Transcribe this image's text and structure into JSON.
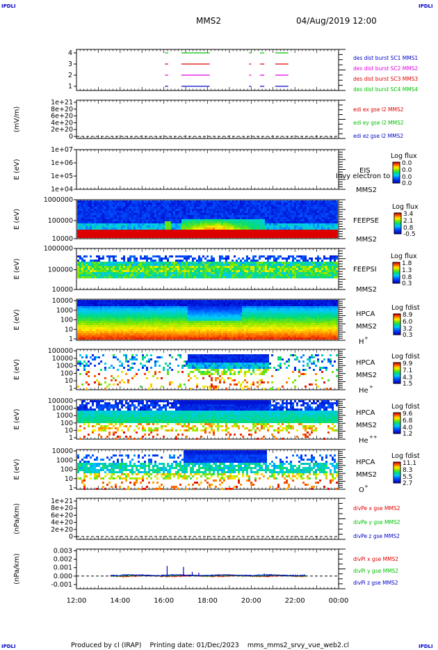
{
  "corners": {
    "tl": "IPDLI",
    "tr": "IPDLI",
    "bl": "IPDLI",
    "br": "IPDLI"
  },
  "header": {
    "spacecraft": "MMS2",
    "datetime": "04/Aug/2019 12:00"
  },
  "footer": {
    "text": "Produced by cl (IRAP)    Printing date: 01/Dec/2023    mms_mms2_srvy_vue_web2.cl"
  },
  "colors": {
    "red": "#e00000",
    "green": "#00c000",
    "blue": "#0000c8",
    "magenta": "#e000e0"
  },
  "chart_data": [
    {
      "type": "line",
      "panel": "burst",
      "ylim": [
        0.5,
        4.5
      ],
      "ticks": [
        "1",
        "2",
        "3",
        "4"
      ],
      "legend": [
        {
          "text": "des dist burst SC1 MMS1",
          "color": "#0000c8"
        },
        {
          "text": "des dist burst SC2 MMS2",
          "color": "#e000e0"
        },
        {
          "text": "des dist burst SC3 MMS3",
          "color": "#e00000"
        },
        {
          "text": "des dist burst SC4 MMS4",
          "color": "#00c000"
        }
      ],
      "intervals": [
        [
          16.05,
          16.2
        ],
        [
          16.8,
          18.1
        ],
        [
          19.9,
          20.0
        ],
        [
          20.4,
          20.6
        ],
        [
          21.1,
          21.7
        ]
      ]
    },
    {
      "type": "line",
      "panel": "edi",
      "ylabel": "(mV/m)",
      "ticks": [
        "1e+21",
        "8e+20",
        "6e+20",
        "4e+20",
        "2e+20",
        "0"
      ],
      "legend": [
        {
          "text": "edi ex gse l2 MMS2",
          "color": "#e00000"
        },
        {
          "text": "edi ey gse l2 MMS2",
          "color": "#00c000"
        },
        {
          "text": "edi ez gse l2 MMS2",
          "color": "#0000c8"
        }
      ]
    },
    {
      "type": "heatmap",
      "panel": "eis",
      "ylabel": "E (eV)",
      "ticks": [
        "1e+07",
        "1e+06",
        "1e+05",
        "1e+04"
      ],
      "instrument": "EIS",
      "overlay": "Invy electron to",
      "sc": "MMS2",
      "cbar_title": "Log flux",
      "cbar_ticks": [
        "0.0",
        "0.0",
        "0.0",
        "0.0"
      ]
    },
    {
      "type": "heatmap",
      "panel": "feepse",
      "ylabel": "E (eV)",
      "ticks": [
        "1000000",
        "100000",
        "10000"
      ],
      "instrument": "FEEPSE",
      "sc": "MMS2",
      "cbar_title": "Log flux",
      "cbar_ticks": [
        "3.4",
        "2.1",
        "0.8",
        "-0.5"
      ]
    },
    {
      "type": "heatmap",
      "panel": "feepsi",
      "ylabel": "E (eV)",
      "ticks": [
        "1000000",
        "100000",
        "10000"
      ],
      "instrument": "FEEPSI",
      "sc": "MMS2",
      "cbar_title": "Log flux",
      "cbar_ticks": [
        "1.8",
        "1.3",
        "0.8",
        "0.3"
      ]
    },
    {
      "type": "heatmap",
      "panel": "hpca_h",
      "ylabel": "E (eV)",
      "ticks": [
        "10000",
        "1000",
        "100",
        "10",
        "1"
      ],
      "instrument": "HPCA",
      "sc": "MMS2",
      "species": "H",
      "charge": "+",
      "cbar_title": "Log fdist",
      "cbar_ticks": [
        "8.9",
        "6.0",
        "3.2",
        "0.3"
      ]
    },
    {
      "type": "heatmap",
      "panel": "hpca_he",
      "ylabel": "E (eV)",
      "ticks": [
        "100000",
        "10000",
        "1000",
        "100",
        "10",
        "1"
      ],
      "instrument": "HPCA",
      "sc": "MMS2",
      "species": "He",
      "charge": "+",
      "cbar_title": "Log fdist",
      "cbar_ticks": [
        "9.9",
        "7.1",
        "4.3",
        "1.5"
      ]
    },
    {
      "type": "heatmap",
      "panel": "hpca_hepp",
      "ylabel": "E (eV)",
      "ticks": [
        "100000",
        "10000",
        "1000",
        "100",
        "10",
        "1"
      ],
      "instrument": "HPCA",
      "sc": "MMS2",
      "species": "He",
      "charge": "++",
      "cbar_title": "Log fdist",
      "cbar_ticks": [
        "9.6",
        "6.8",
        "4.0",
        "1.2"
      ]
    },
    {
      "type": "heatmap",
      "panel": "hpca_o",
      "ylabel": "E (eV)",
      "ticks": [
        "10000",
        "1000",
        "100",
        "10",
        "1"
      ],
      "instrument": "HPCA",
      "sc": "MMS2",
      "species": "O",
      "charge": "+",
      "cbar_title": "Log fdist",
      "cbar_ticks": [
        "11.1",
        "8.3",
        "5.5",
        "2.7"
      ]
    },
    {
      "type": "line",
      "panel": "divpe",
      "ylabel": "(nPa/km)",
      "ticks": [
        "1e+21",
        "8e+20",
        "6e+20",
        "4e+20",
        "2e+20",
        "0"
      ],
      "legend": [
        {
          "text": "divPe x gse MMS2",
          "color": "#e00000"
        },
        {
          "text": "divPe y gse MMS2",
          "color": "#00c000"
        },
        {
          "text": "divPe z gse MMS2",
          "color": "#0000c8"
        }
      ]
    },
    {
      "type": "line",
      "panel": "divpi",
      "ylabel": "(nPa/km)",
      "ticks": [
        "0.003",
        "0.002",
        "0.001",
        "0.000",
        "-0.001"
      ],
      "ylim": [
        -0.0015,
        0.0032
      ],
      "legend": [
        {
          "text": "divPi x gse MMS2",
          "color": "#e00000"
        },
        {
          "text": "divPi y gse MMS2",
          "color": "#00c000"
        },
        {
          "text": "divPi z gse MMS2",
          "color": "#0000c8"
        }
      ],
      "spikes": [
        [
          16.15,
          0.0012
        ],
        [
          16.9,
          0.0011
        ],
        [
          17.3,
          0.0005
        ],
        [
          17.6,
          0.0004
        ],
        [
          20.6,
          0.0003
        ]
      ],
      "x_range": [
        13.55,
        22.5
      ]
    }
  ],
  "xaxis": {
    "ticks": [
      "12:00",
      "14:00",
      "16:00",
      "18:00",
      "20:00",
      "22:00",
      "00:00"
    ],
    "range_hours": [
      12,
      24
    ]
  }
}
